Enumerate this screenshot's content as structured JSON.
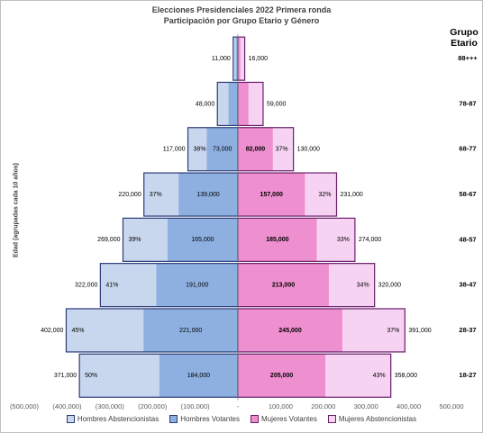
{
  "chart_data": {
    "type": "bar",
    "title": "Elecciones Presidenciales 2022 Primera ronda",
    "subtitle": "Participación por Grupo Etario y Género",
    "ylabel": "Edad (agrupadas cada 10 años)",
    "category_title": "Grupo Etario",
    "xlim": [
      -500000,
      500000
    ],
    "x_ticks": [
      "(500,000)",
      "(400,000)",
      "(300,000)",
      "(200,000)",
      "(100,000)",
      "-",
      "100,000",
      "200,000",
      "300,000",
      "400,000",
      "500,000"
    ],
    "categories": [
      "18-27",
      "28-37",
      "38-47",
      "48-57",
      "58-67",
      "68-77",
      "78-87",
      "88+++"
    ],
    "series": [
      {
        "name": "Hombres Abstencionistas",
        "values": [
          371000,
          402000,
          322000,
          269000,
          220000,
          117000,
          48000,
          11000
        ],
        "labels": [
          "371,000",
          "402,000",
          "322,000",
          "269,000",
          "220,000",
          "117,000",
          "48,000",
          "11,000"
        ],
        "percent_labels": [
          "50%",
          "45%",
          "41%",
          "39%",
          "37%",
          "38%",
          "",
          ""
        ],
        "color": "#c9d7ee"
      },
      {
        "name": "Hombres Votantes",
        "values": [
          184000,
          221000,
          191000,
          165000,
          139000,
          73000,
          22000,
          5000
        ],
        "labels": [
          "184,000",
          "221,000",
          "191,000",
          "165,000",
          "139,000",
          "73,000",
          "",
          ""
        ],
        "color": "#8eb0e0"
      },
      {
        "name": "Mujeres Votantes",
        "values": [
          205000,
          245000,
          213000,
          185000,
          157000,
          82000,
          25000,
          6000
        ],
        "labels": [
          "205,000",
          "245,000",
          "213,000",
          "185,000",
          "157,000",
          "82,000",
          "",
          ""
        ],
        "color": "#ee8fcf"
      },
      {
        "name": "Mujeres Abstencionistas",
        "values": [
          358000,
          391000,
          320000,
          274000,
          231000,
          130000,
          59000,
          16000
        ],
        "labels": [
          "358,000",
          "391,000",
          "320,000",
          "274,000",
          "231,000",
          "130,000",
          "59,000",
          "16,000"
        ],
        "percent_labels": [
          "43%",
          "37%",
          "34%",
          "33%",
          "32%",
          "37%",
          "",
          ""
        ],
        "color": "#f6d3f2"
      }
    ],
    "border_colors": {
      "hombres": "#2b3d7a",
      "mujeres": "#6b1e6b"
    },
    "grid": false,
    "legend_position": "bottom"
  }
}
